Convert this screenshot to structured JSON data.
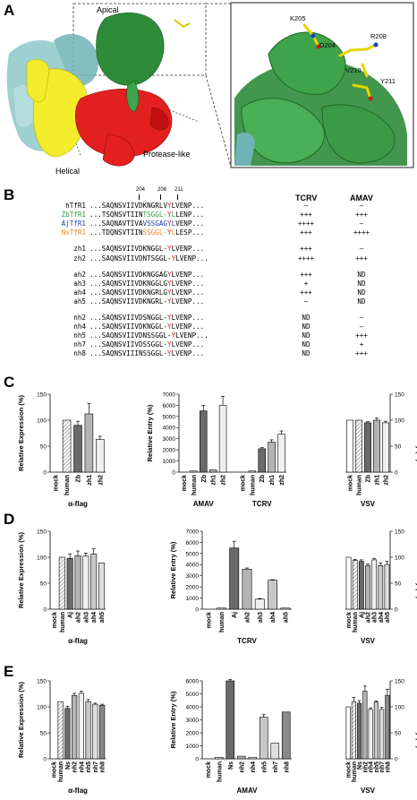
{
  "panels": {
    "A": "A",
    "B": "B",
    "C": "C",
    "D": "D",
    "E": "E"
  },
  "structure": {
    "labels": {
      "apical": "Apical",
      "helical": "Helical",
      "protease": "Protease-like"
    },
    "residues": {
      "k205": "K205",
      "d204": "D204",
      "r208": "R208",
      "v210": "V210",
      "y211": "Y211"
    }
  },
  "alignment": {
    "positions": [
      "204",
      "208",
      "211"
    ],
    "headers": {
      "tcrv": "TCRV",
      "amav": "AMAV"
    },
    "groups": [
      [
        {
          "name": "hTfR1",
          "color": "#000000",
          "prefix": "...SAQNSVIIVDKNGRLVYLVENP...",
          "tcrv": "–",
          "amav": "–"
        },
        {
          "name": "ZbTfR1",
          "color": "#2e9a3e",
          "prefix": "...TSQNSVTIINTSGGL-YLLENP...",
          "tcrv": "+++",
          "amav": "+++"
        },
        {
          "name": "AjTfR1",
          "color": "#1c3fae",
          "prefix": "...SAQNAVTIVAVSSGAGYLVENP...",
          "tcrv": "++++",
          "amav": "–"
        },
        {
          "name": "NsTfR1",
          "color": "#e08a1c",
          "prefix": "...TDQNSVTIINSSGGL-YLLESP...",
          "tcrv": "+++",
          "amav": "++++"
        }
      ],
      [
        {
          "name": "zh1",
          "color": "#000000",
          "prefix": "...SAQNSVIIVDKNGGL-YLVENP...",
          "tcrv": "+++",
          "amav": "–"
        },
        {
          "name": "zh2",
          "color": "#000000",
          "prefix": "...SAQNSVIIVDNTSGGL-YLVENP...",
          "tcrv": "++++",
          "amav": "+++"
        }
      ],
      [
        {
          "name": "ah2",
          "color": "#000000",
          "prefix": "...SAQNSVIIVDKNGGAGYLVENP...",
          "tcrv": "+++",
          "amav": "ND"
        },
        {
          "name": "ah3",
          "color": "#000000",
          "prefix": "...SAQNSVIIVDKNGGLGYLVENP...",
          "tcrv": "+",
          "amav": "ND"
        },
        {
          "name": "ah4",
          "color": "#000000",
          "prefix": "...SAQNSVIIVDKNGRLGYLVENP...",
          "tcrv": "+++",
          "amav": "ND"
        },
        {
          "name": "ah5",
          "color": "#000000",
          "prefix": "...SAQNSVIIVDKNGRL-YLVENP...",
          "tcrv": "–",
          "amav": "ND"
        }
      ],
      [
        {
          "name": "nh2",
          "color": "#000000",
          "prefix": "...SAQNSVIIVDSNGGL-YLVENP...",
          "tcrv": "ND",
          "amav": "–"
        },
        {
          "name": "nh4",
          "color": "#000000",
          "prefix": "...SAQNSVIIVDKNGGL-YLVENP...",
          "tcrv": "ND",
          "amav": "–"
        },
        {
          "name": "nh5",
          "color": "#000000",
          "prefix": "...SAQNSVIIVDNSSGGL-YLVENP...",
          "tcrv": "ND",
          "amav": "+++"
        },
        {
          "name": "nh7",
          "color": "#000000",
          "prefix": "...SAQNSVIIVDSSGGL-YLVENP...",
          "tcrv": "ND",
          "amav": "+"
        },
        {
          "name": "nh8",
          "color": "#000000",
          "prefix": "...SAQNSVIIINSSGGL-YLVENP...",
          "tcrv": "ND",
          "amav": "+++"
        }
      ]
    ]
  },
  "chart_data": [
    {
      "panel": "C",
      "type": "bar",
      "xlabel": "α-flag",
      "ylabel": "Relative Expression (%)",
      "ylim": [
        0,
        150
      ],
      "yticks": [
        0,
        50,
        100,
        150
      ],
      "categories": [
        "mock",
        "human",
        "Zb",
        "zh1",
        "zh2"
      ],
      "values": [
        0,
        100,
        90,
        112,
        63
      ],
      "errors": [
        0,
        0,
        8,
        20,
        6
      ]
    },
    {
      "panel": "C",
      "type": "bar",
      "ylabel": "Relative Entry (%)",
      "ylim": [
        0,
        7000
      ],
      "yticks": [
        0,
        1000,
        2000,
        3000,
        4000,
        5000,
        6000,
        7000
      ],
      "groups": [
        {
          "label": "AMAV",
          "categories": [
            "mock",
            "human",
            "Zb",
            "zh1",
            "zh2"
          ],
          "values": [
            0,
            100,
            5500,
            200,
            6000
          ],
          "errors": [
            0,
            0,
            500,
            0,
            800
          ]
        },
        {
          "label": "TCRV",
          "categories": [
            "mock",
            "human",
            "Zb",
            "zh1",
            "zh2"
          ],
          "values": [
            0,
            100,
            2100,
            2700,
            3400
          ],
          "errors": [
            0,
            0,
            100,
            200,
            300
          ]
        }
      ]
    },
    {
      "panel": "C",
      "type": "bar",
      "xlabel": "VSV",
      "ylabel": "Relative Entry (%)",
      "ylim": [
        0,
        150
      ],
      "yticks": [
        0,
        50,
        100,
        150
      ],
      "categories": [
        "mock",
        "human",
        "Zb",
        "zh1",
        "zh2"
      ],
      "values": [
        100,
        100,
        95,
        100,
        95
      ],
      "errors": [
        0,
        0,
        2,
        4,
        3
      ]
    },
    {
      "panel": "D",
      "type": "bar",
      "xlabel": "α-flag",
      "ylabel": "Relative Expression (%)",
      "ylim": [
        0,
        150
      ],
      "yticks": [
        0,
        50,
        100,
        150
      ],
      "categories": [
        "mock",
        "human",
        "Aj",
        "ah2",
        "ah3",
        "ah4",
        "ah5"
      ],
      "values": [
        0,
        100,
        98,
        103,
        102,
        106,
        89
      ],
      "errors": [
        0,
        0,
        8,
        9,
        6,
        10,
        0
      ]
    },
    {
      "panel": "D",
      "type": "bar",
      "xlabel": "TCRV",
      "ylabel": "Relative Entry (%)",
      "ylim": [
        0,
        7000
      ],
      "yticks": [
        0,
        1000,
        2000,
        3000,
        4000,
        5000,
        6000,
        7000
      ],
      "categories": [
        "mock",
        "human",
        "Aj",
        "ah2",
        "ah3",
        "ah4",
        "ah5"
      ],
      "values": [
        0,
        100,
        5500,
        3600,
        900,
        2600,
        100
      ],
      "errors": [
        0,
        0,
        600,
        100,
        50,
        50,
        0
      ]
    },
    {
      "panel": "D",
      "type": "bar",
      "xlabel": "VSV",
      "ylabel": "Relative Entry (%)",
      "ylim": [
        0,
        150
      ],
      "yticks": [
        0,
        50,
        100,
        150
      ],
      "categories": [
        "mock",
        "human",
        "Aj",
        "ah2",
        "ah3",
        "ah4",
        "ah5"
      ],
      "values": [
        100,
        94,
        92,
        84,
        95,
        84,
        86
      ],
      "errors": [
        0,
        2,
        3,
        3,
        3,
        5,
        6
      ]
    },
    {
      "panel": "E",
      "type": "bar",
      "xlabel": "α-flag",
      "ylabel": "Relative Expression (%)",
      "ylim": [
        0,
        150
      ],
      "yticks": [
        0,
        50,
        100,
        150
      ],
      "categories": [
        "mock",
        "human",
        "Ns",
        "nh2",
        "nh4",
        "nh5",
        "nh7",
        "nh8"
      ],
      "values": [
        0,
        110,
        97,
        122,
        126,
        110,
        105,
        103
      ],
      "errors": [
        0,
        0,
        4,
        4,
        4,
        4,
        2,
        2
      ]
    },
    {
      "panel": "E",
      "type": "bar",
      "xlabel": "AMAV",
      "ylabel": "Relative Entry (%)",
      "ylim": [
        0,
        6000
      ],
      "yticks": [
        0,
        1000,
        2000,
        3000,
        4000,
        5000,
        6000
      ],
      "categories": [
        "mock",
        "human",
        "Ns",
        "nh2",
        "nh4",
        "nh5",
        "nh7",
        "nh8"
      ],
      "values": [
        0,
        100,
        6000,
        200,
        100,
        3200,
        1200,
        3600
      ],
      "errors": [
        0,
        0,
        100,
        0,
        0,
        200,
        0,
        0
      ]
    },
    {
      "panel": "E",
      "type": "bar",
      "xlabel": "VSV",
      "ylabel": "Relative Entry (%)",
      "ylim": [
        0,
        150
      ],
      "yticks": [
        0,
        50,
        100,
        150
      ],
      "categories": [
        "mock",
        "human",
        "Ns",
        "nh2",
        "nh4",
        "nh5",
        "nh7",
        "nh8"
      ],
      "values": [
        100,
        110,
        107,
        130,
        95,
        109,
        95,
        122
      ],
      "errors": [
        0,
        8,
        5,
        10,
        3,
        2,
        4,
        12
      ]
    }
  ]
}
